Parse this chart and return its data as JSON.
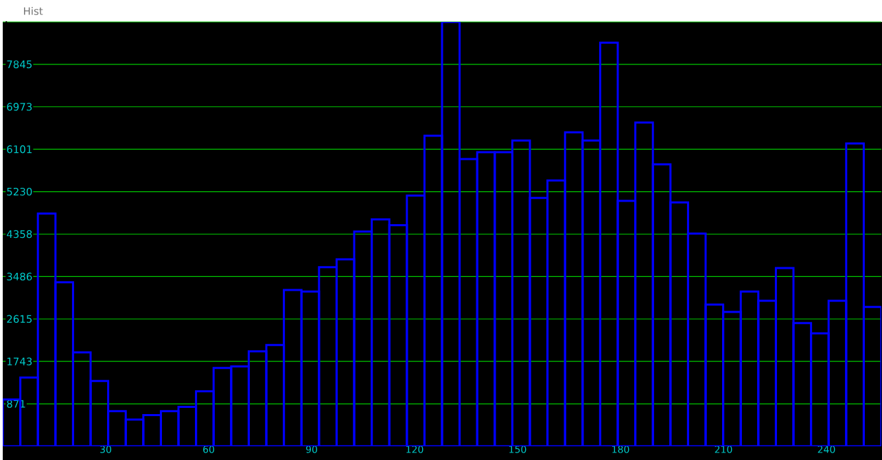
{
  "chart_data": {
    "type": "histogram",
    "title": "Hist",
    "bins": [
      0,
      5.12,
      10.24,
      15.36,
      20.48,
      25.6,
      30.72,
      35.84,
      40.96,
      46.08,
      51.2,
      56.32,
      61.44,
      66.56,
      71.68,
      76.8,
      81.92,
      87.04,
      92.16,
      97.28,
      102.4,
      107.52,
      112.64,
      117.76,
      122.88,
      128,
      133.12,
      138.24,
      143.36,
      148.48,
      153.6,
      158.72,
      163.84,
      168.96,
      174.08,
      179.2,
      184.32,
      189.44,
      194.56,
      199.68,
      204.8,
      209.92,
      215.04,
      220.16,
      225.28,
      230.4,
      235.52,
      240.64,
      245.76,
      250.88,
      256
    ],
    "values": [
      960,
      1410,
      4780,
      3370,
      1930,
      1340,
      720,
      550,
      640,
      720,
      810,
      1130,
      1610,
      1640,
      1950,
      2080,
      3210,
      3180,
      3680,
      3840,
      4410,
      4660,
      4540,
      5150,
      6380,
      8716,
      5900,
      6040,
      6040,
      6280,
      5100,
      5460,
      6450,
      6280,
      8290,
      5040,
      6650,
      5790,
      5010,
      4370,
      2910,
      2760,
      3180,
      2990,
      3660,
      2530,
      2320,
      2990,
      6220,
      2860
    ],
    "color": "#0000ff",
    "xlim": [
      0,
      256
    ],
    "ylim": [
      0,
      8716
    ],
    "xticks": [
      30,
      60,
      90,
      120,
      150,
      180,
      210,
      240
    ],
    "yticks": [
      871,
      1743,
      2615,
      3486,
      4358,
      5230,
      6101,
      6973,
      7845,
      {
        "value": 8716,
        "label": null
      }
    ],
    "grid": "y"
  }
}
